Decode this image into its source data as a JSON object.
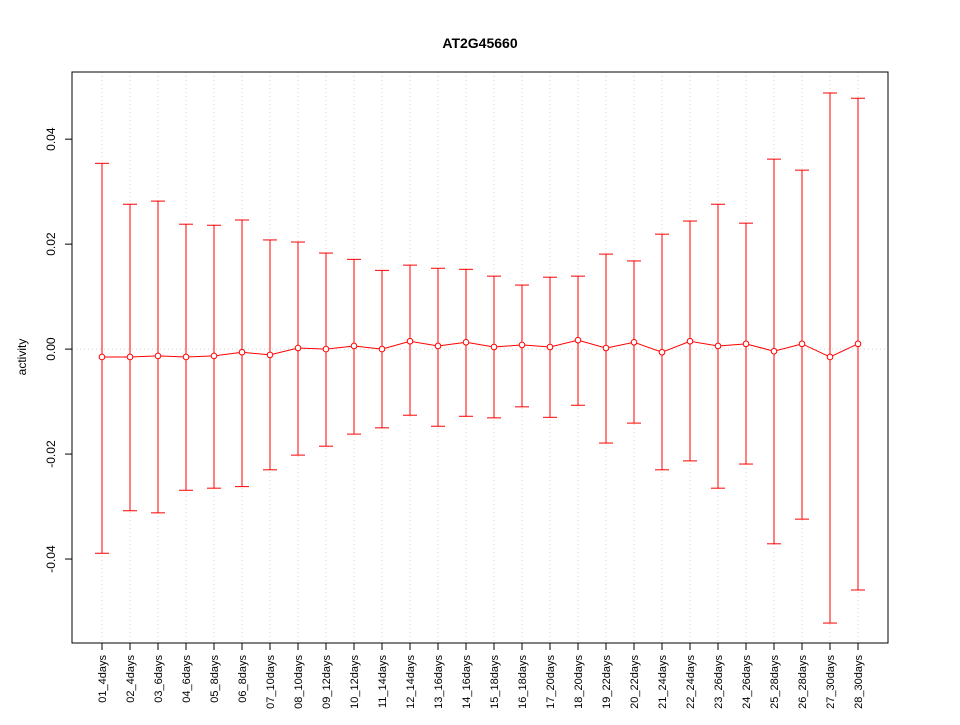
{
  "chart_data": {
    "type": "line",
    "title": "AT2G45660",
    "xlabel": "",
    "ylabel": "activity",
    "ylim": [
      -0.056,
      0.0528
    ],
    "yticks": [
      -0.04,
      -0.02,
      0.0,
      0.02,
      0.04
    ],
    "ytick_labels": [
      "-0.04",
      "-0.02",
      "0.00",
      "0.02",
      "0.04"
    ],
    "grid": "dotted vertical at each category, dotted horizontal at 0",
    "color": "#ff0000",
    "categories": [
      "01_4days",
      "02_4days",
      "03_6days",
      "04_6days",
      "05_8days",
      "06_8days",
      "07_10days",
      "08_10days",
      "09_12days",
      "10_12days",
      "11_14days",
      "12_14days",
      "13_16days",
      "14_16days",
      "15_18days",
      "16_18days",
      "17_20days",
      "18_20days",
      "19_22days",
      "20_22days",
      "21_24days",
      "22_24days",
      "23_26days",
      "24_26days",
      "25_28days",
      "26_28days",
      "27_30days",
      "28_30days"
    ],
    "series": [
      {
        "name": "mean",
        "values": [
          -0.0015,
          -0.0015,
          -0.0013,
          -0.0015,
          -0.0013,
          -0.0006,
          -0.0011,
          0.0002,
          0.0,
          0.0006,
          0.0,
          0.0015,
          0.0006,
          0.0013,
          0.0004,
          0.0008,
          0.0004,
          0.0017,
          0.0002,
          0.0013,
          -0.0006,
          0.0015,
          0.0006,
          0.001,
          -0.0004,
          0.001,
          -0.0015,
          0.001
        ]
      },
      {
        "name": "upper",
        "values": [
          0.0354,
          0.0276,
          0.0282,
          0.0238,
          0.0236,
          0.0246,
          0.0208,
          0.0204,
          0.0183,
          0.0171,
          0.015,
          0.016,
          0.0154,
          0.0152,
          0.0139,
          0.0122,
          0.0137,
          0.0139,
          0.0181,
          0.0168,
          0.0219,
          0.0244,
          0.0276,
          0.024,
          0.0362,
          0.0341,
          0.0488,
          0.0478
        ]
      },
      {
        "name": "lower",
        "values": [
          -0.0389,
          -0.0308,
          -0.0312,
          -0.0269,
          -0.0265,
          -0.0262,
          -0.023,
          -0.0202,
          -0.0185,
          -0.0162,
          -0.015,
          -0.0126,
          -0.0147,
          -0.0128,
          -0.0131,
          -0.011,
          -0.013,
          -0.0107,
          -0.0179,
          -0.0141,
          -0.023,
          -0.0213,
          -0.0265,
          -0.0219,
          -0.0371,
          -0.0324,
          -0.0522,
          -0.0459
        ]
      }
    ]
  }
}
